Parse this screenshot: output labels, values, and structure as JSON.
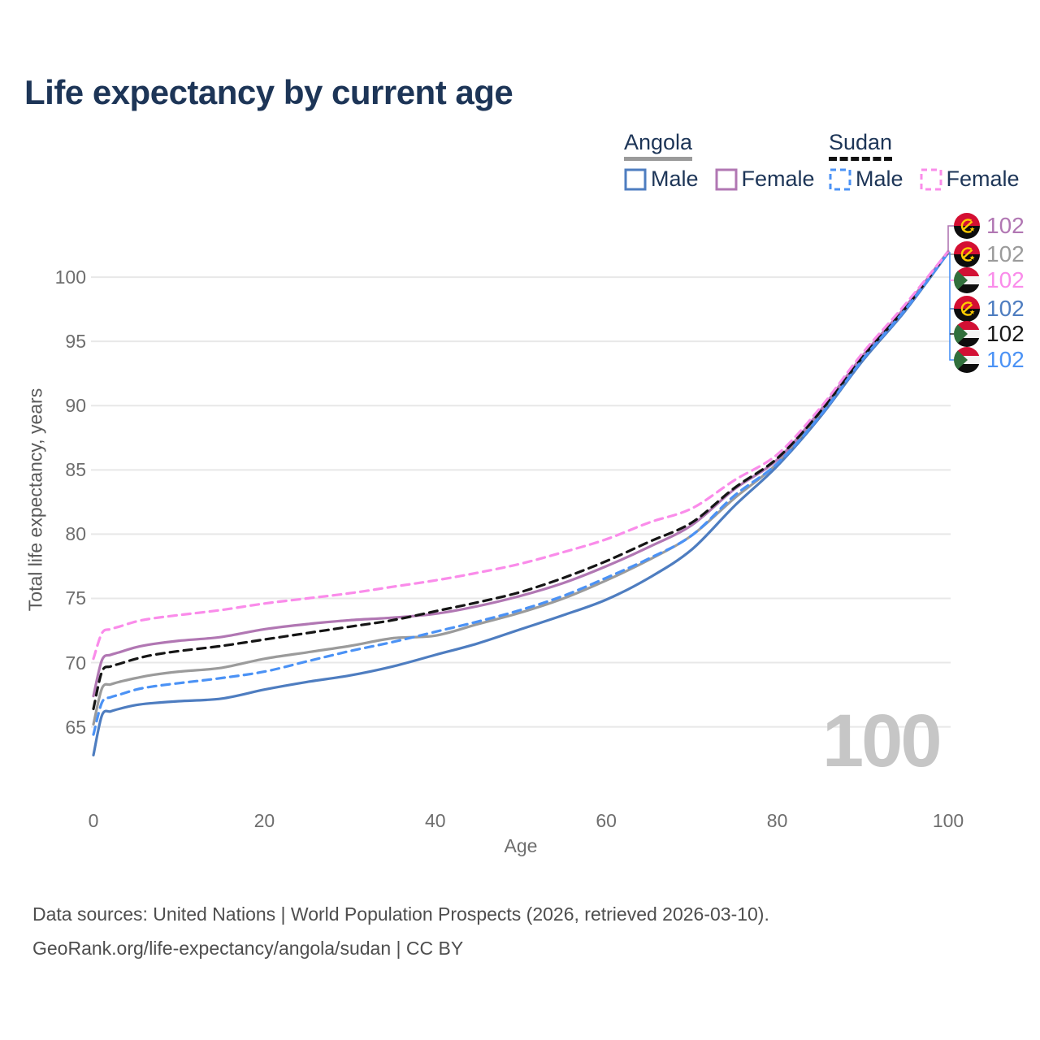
{
  "title": "Life expectancy by current age",
  "watermark": "100",
  "footer": {
    "line1": "Data sources: United Nations | World Population Prospects (2026, retrieved 2026-03-10).",
    "line2": "GeoRank.org/life-expectancy/angola/sudan | CC BY"
  },
  "legend": {
    "groups": [
      {
        "country": "Angola",
        "line_style": "solid",
        "underline_color": "#9a9a9a",
        "items": [
          {
            "label": "Male",
            "color": "#4e7dc0",
            "style": "solid"
          },
          {
            "label": "Female",
            "color": "#b177b3",
            "style": "solid"
          }
        ]
      },
      {
        "country": "Sudan",
        "line_style": "dashed",
        "underline_color": "#111111",
        "items": [
          {
            "label": "Male",
            "color": "#4b92f5",
            "style": "dashed"
          },
          {
            "label": "Female",
            "color": "#fa8cea",
            "style": "dashed"
          }
        ]
      }
    ]
  },
  "chart_data": {
    "type": "line",
    "title": "Life expectancy by current age",
    "xlabel": "Age",
    "ylabel": "Total life expectancy, years",
    "x_ticks": [
      0,
      20,
      40,
      60,
      80,
      100
    ],
    "y_ticks": [
      65,
      70,
      75,
      80,
      85,
      90,
      95,
      100
    ],
    "xlim": [
      0,
      100
    ],
    "ylim": [
      62,
      103
    ],
    "grid": true,
    "legend_position": "top-right",
    "hovered_age": "100",
    "x": [
      0,
      1,
      2,
      3,
      5,
      7,
      10,
      15,
      20,
      25,
      30,
      35,
      40,
      45,
      50,
      55,
      60,
      65,
      70,
      75,
      80,
      85,
      90,
      95,
      100
    ],
    "series": [
      {
        "name": "Angola",
        "country": "Angola",
        "group": "All",
        "style": "solid",
        "color": "#9b9b9b",
        "values": [
          65.2,
          68.0,
          68.3,
          68.5,
          68.8,
          69.05,
          69.3,
          69.6,
          70.3,
          70.8,
          71.3,
          71.9,
          72.1,
          73.0,
          73.9,
          75.0,
          76.4,
          78.0,
          79.9,
          82.8,
          85.5,
          89.3,
          93.7,
          97.5,
          101.9
        ]
      },
      {
        "name": "Angola Female",
        "country": "Angola",
        "group": "Female",
        "style": "solid",
        "color": "#b177b3",
        "values": [
          67.4,
          70.2,
          70.6,
          70.8,
          71.2,
          71.45,
          71.7,
          72.0,
          72.6,
          73.0,
          73.3,
          73.5,
          73.8,
          74.4,
          75.2,
          76.2,
          77.5,
          79.0,
          80.7,
          83.5,
          85.8,
          89.6,
          93.9,
          97.7,
          102.0
        ]
      },
      {
        "name": "Angola Male",
        "country": "Angola",
        "group": "Male",
        "style": "solid",
        "color": "#4e7dc0",
        "values": [
          62.8,
          65.9,
          66.2,
          66.4,
          66.7,
          66.85,
          67.0,
          67.2,
          67.9,
          68.5,
          69.0,
          69.7,
          70.6,
          71.5,
          72.6,
          73.7,
          74.9,
          76.6,
          78.8,
          82.2,
          85.3,
          89.1,
          93.5,
          97.4,
          101.9
        ]
      },
      {
        "name": "Sudan",
        "country": "Sudan",
        "group": "All",
        "style": "dashed",
        "color": "#151515",
        "values": [
          66.4,
          69.3,
          69.7,
          69.9,
          70.3,
          70.6,
          70.9,
          71.3,
          71.8,
          72.3,
          72.8,
          73.3,
          74.0,
          74.7,
          75.5,
          76.6,
          77.9,
          79.4,
          80.9,
          83.6,
          85.9,
          89.5,
          93.8,
          97.6,
          102.0
        ]
      },
      {
        "name": "Sudan Male",
        "country": "Sudan",
        "group": "Male",
        "style": "dashed",
        "color": "#4b92f5",
        "values": [
          64.4,
          66.9,
          67.3,
          67.5,
          67.9,
          68.15,
          68.4,
          68.8,
          69.3,
          70.1,
          70.9,
          71.6,
          72.4,
          73.2,
          74.1,
          75.2,
          76.6,
          78.1,
          79.9,
          83.0,
          85.5,
          89.2,
          93.6,
          97.5,
          101.9
        ]
      },
      {
        "name": "Sudan Female",
        "country": "Sudan",
        "group": "Female",
        "style": "dashed",
        "color": "#fa8cea",
        "values": [
          70.3,
          72.3,
          72.6,
          72.8,
          73.2,
          73.45,
          73.7,
          74.1,
          74.6,
          75.0,
          75.4,
          75.9,
          76.4,
          77.0,
          77.7,
          78.6,
          79.6,
          80.9,
          82.0,
          84.2,
          86.2,
          89.8,
          94.1,
          97.9,
          102.0
        ]
      }
    ],
    "end_labels": [
      {
        "series": "Angola Female",
        "flag": "angola",
        "value": "102",
        "color": "#b177b3"
      },
      {
        "series": "Angola",
        "flag": "angola",
        "value": "102",
        "color": "#9b9b9b"
      },
      {
        "series": "Sudan Female",
        "flag": "sudan",
        "value": "102",
        "color": "#fa8cea"
      },
      {
        "series": "Angola Male",
        "flag": "angola",
        "value": "102",
        "color": "#4e7dc0"
      },
      {
        "series": "Sudan",
        "flag": "sudan",
        "value": "102",
        "color": "#1a1a1a"
      },
      {
        "series": "Sudan Male",
        "flag": "sudan",
        "value": "102",
        "color": "#4b92f5"
      }
    ]
  }
}
